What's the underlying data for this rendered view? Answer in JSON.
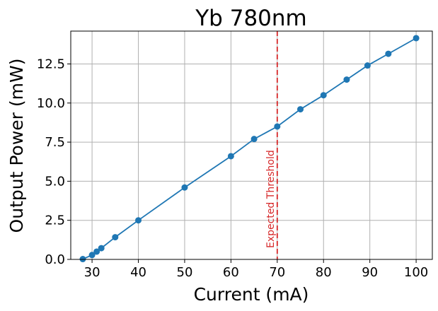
{
  "chart_data": {
    "type": "line",
    "title": "Yb 780nm",
    "xlabel": "Current (mA)",
    "ylabel": "Output Power (mW)",
    "xlim": [
      25.4,
      103.5
    ],
    "ylim": [
      0.0,
      14.6
    ],
    "x_ticks": [
      30,
      40,
      50,
      60,
      70,
      80,
      90,
      100
    ],
    "x_tick_labels": [
      "30",
      "40",
      "50",
      "60",
      "70",
      "80",
      "90",
      "100"
    ],
    "y_ticks": [
      0.0,
      2.5,
      5.0,
      7.5,
      10.0,
      12.5
    ],
    "y_tick_labels": [
      "0.0",
      "2.5",
      "5.0",
      "7.5",
      "10.0",
      "12.5"
    ],
    "grid": true,
    "series": [
      {
        "color": "#1f77b4",
        "marker": "circle",
        "x": [
          28,
          30,
          31,
          32,
          35,
          40,
          50,
          60,
          65,
          70,
          75,
          80,
          85,
          89.5,
          94,
          100
        ],
        "y": [
          0.02,
          0.28,
          0.5,
          0.72,
          1.42,
          2.5,
          4.6,
          6.6,
          7.7,
          8.5,
          9.6,
          10.5,
          11.5,
          12.4,
          13.15,
          14.15
        ]
      }
    ],
    "annotations": [
      {
        "type": "vline",
        "x": 70,
        "color": "#d62728",
        "linestyle": "dashed",
        "label": "Expected Threshold"
      }
    ]
  }
}
